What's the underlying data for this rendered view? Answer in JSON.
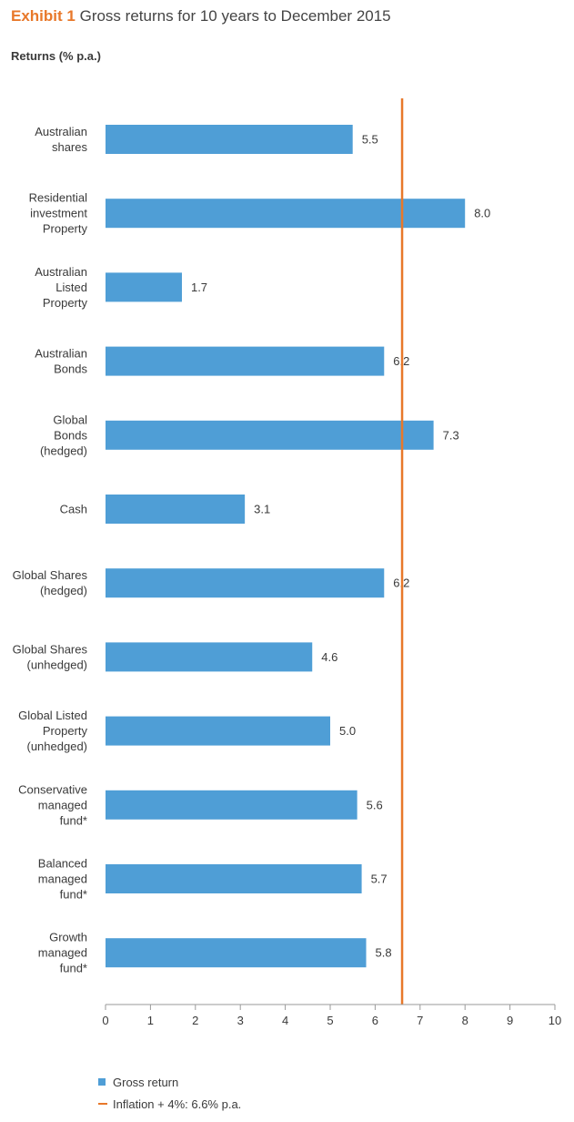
{
  "header": {
    "exhibit_label": "Exhibit 1",
    "title": "Gross returns for 10 years to December 2015"
  },
  "axis": {
    "ylabel": "Returns (% p.a.)"
  },
  "legend": {
    "bar_label": "Gross return",
    "line_label": "Inflation + 4%:  6.6% p.a."
  },
  "colors": {
    "bar": "#4f9ed6",
    "reference_line": "#e8782a",
    "axis": "#9a9a9a"
  },
  "chart_data": {
    "type": "bar",
    "orientation": "horizontal",
    "categories": [
      [
        "Australian",
        "shares"
      ],
      [
        "Residential",
        "investment",
        "Property"
      ],
      [
        "Australian",
        "Listed",
        "Property"
      ],
      [
        "Australian",
        "Bonds"
      ],
      [
        "Global",
        "Bonds",
        "(hedged)"
      ],
      [
        "Cash"
      ],
      [
        "Global Shares",
        "(hedged)"
      ],
      [
        "Global Shares",
        "(unhedged)"
      ],
      [
        "Global Listed",
        "Property",
        "(unhedged)"
      ],
      [
        "Conservative",
        "managed",
        "fund*"
      ],
      [
        "Balanced",
        "managed",
        "fund*"
      ],
      [
        "Growth",
        "managed",
        "fund*"
      ]
    ],
    "series": [
      {
        "name": "Gross return",
        "values": [
          5.5,
          8.0,
          1.7,
          6.2,
          7.3,
          3.1,
          6.2,
          4.6,
          5.0,
          5.6,
          5.7,
          5.8
        ]
      }
    ],
    "value_labels": [
      "5.5",
      "8.0",
      "1.7",
      "6.2",
      "7.3",
      "3.1",
      "6.2",
      "4.6",
      "5.0",
      "5.6",
      "5.7",
      "5.8"
    ],
    "reference_line": {
      "name": "Inflation + 4%",
      "value": 6.6
    },
    "xlim": [
      0,
      10
    ],
    "xticks": [
      0,
      1,
      2,
      3,
      4,
      5,
      6,
      7,
      8,
      9,
      10
    ],
    "grid": false,
    "legend_position": "bottom-left"
  }
}
